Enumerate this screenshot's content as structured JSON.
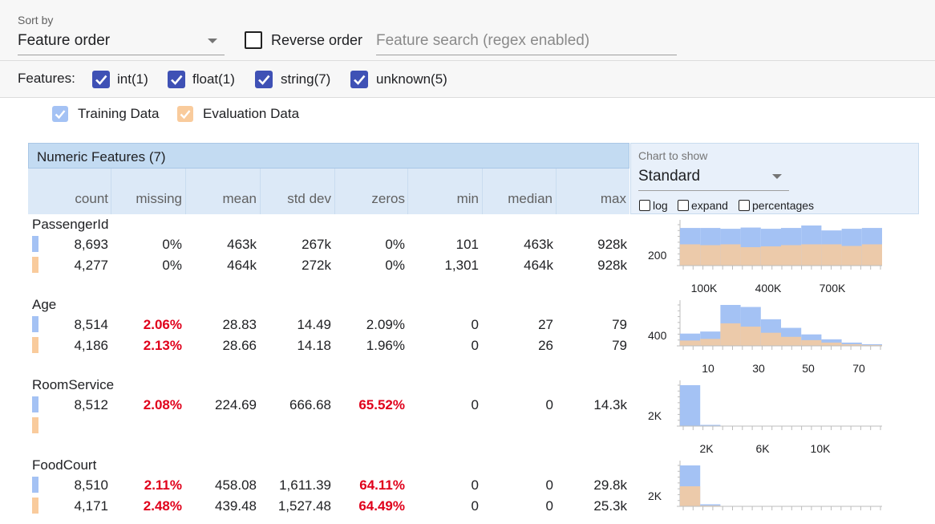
{
  "toolbar": {
    "sort_by_label": "Sort by",
    "sort_by_value": "Feature order",
    "reverse_label": "Reverse order",
    "search_placeholder": "Feature search (regex enabled)"
  },
  "features": {
    "label": "Features:",
    "types": [
      {
        "label": "int(1)",
        "checked": true
      },
      {
        "label": "float(1)",
        "checked": true
      },
      {
        "label": "string(7)",
        "checked": true
      },
      {
        "label": "unknown(5)",
        "checked": true
      }
    ]
  },
  "legend": {
    "training": "Training Data",
    "evaluation": "Evaluation Data",
    "training_color": "#a4c2f4",
    "evaluation_color": "#f9cb9c"
  },
  "table": {
    "title": "Numeric Features (7)",
    "columns": [
      "count",
      "missing",
      "mean",
      "std dev",
      "zeros",
      "min",
      "median",
      "max"
    ]
  },
  "chart_panel": {
    "label": "Chart to show",
    "value": "Standard",
    "options": {
      "log": "log",
      "expand": "expand",
      "percentages": "percentages"
    }
  },
  "rows": [
    {
      "name": "PassengerId",
      "train": [
        "8,693",
        "0%",
        "463k",
        "267k",
        "0%",
        "101",
        "463k",
        "928k"
      ],
      "eval": [
        "4,277",
        "0%",
        "464k",
        "272k",
        "0%",
        "1,301",
        "464k",
        "928k"
      ],
      "train_red": [
        false,
        false,
        false,
        false,
        false,
        false,
        false,
        false
      ],
      "eval_red": [
        false,
        false,
        false,
        false,
        false,
        false,
        false,
        false
      ]
    },
    {
      "name": "Age",
      "train": [
        "8,514",
        "2.06%",
        "28.83",
        "14.49",
        "2.09%",
        "0",
        "27",
        "79"
      ],
      "eval": [
        "4,186",
        "2.13%",
        "28.66",
        "14.18",
        "1.96%",
        "0",
        "26",
        "79"
      ],
      "train_red": [
        false,
        true,
        false,
        false,
        false,
        false,
        false,
        false
      ],
      "eval_red": [
        false,
        true,
        false,
        false,
        false,
        false,
        false,
        false
      ]
    },
    {
      "name": "RoomService",
      "train": [
        "8,512",
        "2.08%",
        "224.69",
        "666.68",
        "65.52%",
        "0",
        "0",
        "14.3k"
      ],
      "eval": [
        "",
        "",
        "",
        "",
        "",
        "",
        "",
        ""
      ],
      "train_red": [
        false,
        true,
        false,
        false,
        true,
        false,
        false,
        false
      ],
      "eval_red": [
        false,
        false,
        false,
        false,
        false,
        false,
        false,
        false
      ]
    },
    {
      "name": "FoodCourt",
      "train": [
        "8,510",
        "2.11%",
        "458.08",
        "1,611.39",
        "64.11%",
        "0",
        "0",
        "29.8k"
      ],
      "eval": [
        "4,171",
        "2.48%",
        "439.48",
        "1,527.48",
        "64.49%",
        "0",
        "0",
        "25.3k"
      ],
      "train_red": [
        false,
        true,
        false,
        false,
        true,
        false,
        false,
        false
      ],
      "eval_red": [
        false,
        true,
        false,
        false,
        true,
        false,
        false,
        false
      ]
    }
  ],
  "histograms": [
    {
      "y_label": "200",
      "x_ticks": [
        "100K",
        "400K",
        "700K"
      ],
      "train": [
        0.92,
        0.92,
        0.9,
        0.93,
        0.9,
        0.92,
        0.98,
        0.86,
        0.9,
        0.92
      ],
      "eval": [
        0.52,
        0.5,
        0.52,
        0.45,
        0.47,
        0.5,
        0.52,
        0.52,
        0.48,
        0.52
      ]
    },
    {
      "y_label": "400",
      "x_ticks": [
        "10",
        "30",
        "50",
        "70"
      ],
      "train": [
        0.3,
        0.35,
        1.0,
        0.95,
        0.65,
        0.44,
        0.28,
        0.16,
        0.08,
        0.04
      ],
      "eval": [
        0.13,
        0.17,
        0.55,
        0.47,
        0.32,
        0.22,
        0.14,
        0.08,
        0.04,
        0.02
      ]
    },
    {
      "y_label": "2K",
      "x_ticks": [
        "2K",
        "6K",
        "10K"
      ],
      "train": [
        1.0,
        0.03,
        0.0,
        0.0,
        0.0,
        0.0,
        0.0,
        0.0,
        0.0,
        0.0
      ],
      "eval": [
        0.0,
        0.0,
        0.0,
        0.0,
        0.0,
        0.0,
        0.0,
        0.0,
        0.0,
        0.0
      ]
    },
    {
      "y_label": "2K",
      "x_ticks": [],
      "train": [
        1.0,
        0.05,
        0.01,
        0.0,
        0.0,
        0.0,
        0.0,
        0.0,
        0.0,
        0.0
      ],
      "eval": [
        0.49,
        0.02,
        0.0,
        0.0,
        0.0,
        0.0,
        0.0,
        0.0,
        0.0,
        0.0
      ]
    }
  ]
}
